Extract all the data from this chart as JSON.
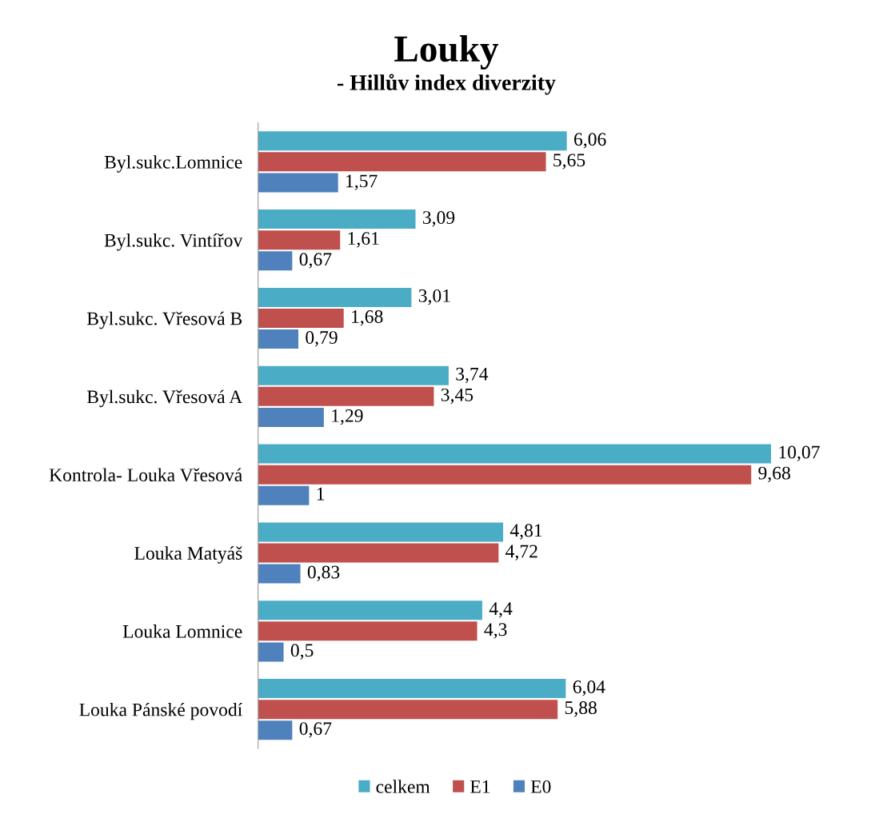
{
  "chart_data": {
    "type": "bar",
    "orientation": "horizontal",
    "title": "Louky",
    "subtitle": "- Hillův index diverzity",
    "categories": [
      "Byl.sukc.Lomnice",
      "Byl.sukc. Vintířov",
      "Byl.sukc. Vřesová B",
      "Byl.sukc. Vřesová A",
      "Kontrola- Louka Vřesová",
      "Louka Matyáš",
      "Louka Lomnice",
      "Louka Pánské povodí"
    ],
    "series": [
      {
        "name": "celkem",
        "color": "#4bacc6",
        "values": [
          6.06,
          3.09,
          3.01,
          3.74,
          10.07,
          4.81,
          4.4,
          6.04
        ],
        "value_labels": [
          "6,06",
          "3,09",
          "3,01",
          "3,74",
          "10,07",
          "4,81",
          "4,4",
          "6,04"
        ]
      },
      {
        "name": "E1",
        "color": "#c0504d",
        "values": [
          5.65,
          1.61,
          1.68,
          3.45,
          9.68,
          4.72,
          4.3,
          5.88
        ],
        "value_labels": [
          "5,65",
          "1,61",
          "1,68",
          "3,45",
          "9,68",
          "4,72",
          "4,3",
          "5,88"
        ]
      },
      {
        "name": "E0",
        "color": "#4f81bd",
        "values": [
          1.57,
          0.67,
          0.79,
          1.29,
          1,
          0.83,
          0.5,
          0.67
        ],
        "value_labels": [
          "1,57",
          "0,67",
          "0,79",
          "1,29",
          "1",
          "0,83",
          "0,5",
          "0,67"
        ]
      }
    ],
    "tick_labels": "y",
    "grid": false,
    "legend": "bottom"
  }
}
